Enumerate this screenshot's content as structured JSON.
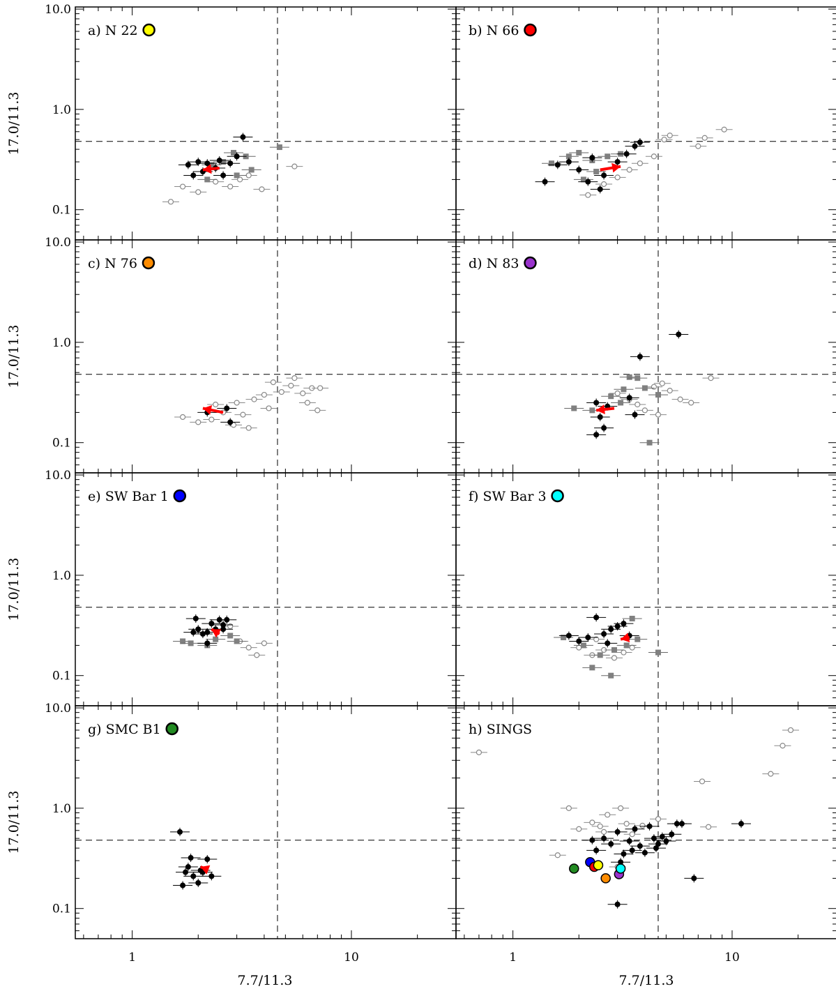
{
  "chart_data": {
    "type": "scatter",
    "xlabel": "7.7/11.3",
    "ylabel": "17.0/11.3",
    "xscale": "log",
    "yscale": "log",
    "xlim": [
      0.55,
      30
    ],
    "ylim": [
      0.05,
      10.5
    ],
    "xticks": [
      {
        "v": 1,
        "label": "1"
      },
      {
        "v": 10,
        "label": "10"
      }
    ],
    "yticks": [
      {
        "v": 0.1,
        "label": "0.1"
      },
      {
        "v": 1.0,
        "label": "1.0"
      },
      {
        "v": 10.0,
        "label": "10.0"
      }
    ],
    "reference_lines": {
      "x": 4.6,
      "y": 0.48
    },
    "legend_colors": {
      "N 22": "#ffff00",
      "N 66": "#ff0000",
      "N 76": "#ff8c00",
      "N 83": "#9932cc",
      "SW Bar 1": "#0000ff",
      "SW Bar 3": "#00ffff",
      "SMC B1": "#228b22"
    },
    "panels": [
      {
        "id": "a",
        "label": "a) N 22",
        "color": "#ffff00",
        "black": [
          [
            1.8,
            0.28
          ],
          [
            2.0,
            0.3
          ],
          [
            2.2,
            0.29
          ],
          [
            2.4,
            0.26
          ],
          [
            2.6,
            0.22
          ],
          [
            2.8,
            0.29
          ],
          [
            3.0,
            0.34
          ],
          [
            3.2,
            0.53
          ],
          [
            2.1,
            0.24
          ],
          [
            2.5,
            0.31
          ],
          [
            1.9,
            0.22
          ]
        ],
        "gray_sq": [
          [
            2.3,
            0.28
          ],
          [
            2.6,
            0.3
          ],
          [
            2.9,
            0.37
          ],
          [
            3.3,
            0.34
          ],
          [
            3.5,
            0.25
          ],
          [
            3.0,
            0.22
          ],
          [
            4.7,
            0.42
          ],
          [
            2.2,
            0.2
          ]
        ],
        "gray_open": [
          [
            1.7,
            0.17
          ],
          [
            2.0,
            0.15
          ],
          [
            2.4,
            0.19
          ],
          [
            2.8,
            0.17
          ],
          [
            3.1,
            0.2
          ],
          [
            3.4,
            0.22
          ],
          [
            3.9,
            0.16
          ],
          [
            5.5,
            0.27
          ],
          [
            1.5,
            0.12
          ]
        ],
        "arrow": [
          [
            2.5,
            0.26
          ],
          [
            2.1,
            0.25
          ]
        ]
      },
      {
        "id": "b",
        "label": "b) N 66",
        "color": "#ff0000",
        "black": [
          [
            1.4,
            0.19
          ],
          [
            1.6,
            0.28
          ],
          [
            1.8,
            0.3
          ],
          [
            2.0,
            0.25
          ],
          [
            2.2,
            0.19
          ],
          [
            2.3,
            0.33
          ],
          [
            2.5,
            0.16
          ],
          [
            3.0,
            0.3
          ],
          [
            3.3,
            0.36
          ],
          [
            3.6,
            0.43
          ],
          [
            3.8,
            0.47
          ],
          [
            2.6,
            0.22
          ]
        ],
        "gray_sq": [
          [
            1.5,
            0.29
          ],
          [
            1.8,
            0.34
          ],
          [
            2.0,
            0.37
          ],
          [
            2.3,
            0.31
          ],
          [
            2.7,
            0.34
          ],
          [
            3.1,
            0.36
          ],
          [
            2.4,
            0.24
          ],
          [
            2.1,
            0.2
          ]
        ],
        "gray_open": [
          [
            2.2,
            0.14
          ],
          [
            2.6,
            0.18
          ],
          [
            3.0,
            0.21
          ],
          [
            3.4,
            0.25
          ],
          [
            3.8,
            0.29
          ],
          [
            4.4,
            0.34
          ],
          [
            4.9,
            0.5
          ],
          [
            5.2,
            0.55
          ],
          [
            7.5,
            0.52
          ],
          [
            9.2,
            0.63
          ],
          [
            7.0,
            0.43
          ]
        ],
        "arrow": [
          [
            2.5,
            0.25
          ],
          [
            3.1,
            0.27
          ]
        ]
      },
      {
        "id": "c",
        "label": "c) N 76",
        "color": "#ff8c00",
        "black": [
          [
            2.7,
            0.22
          ],
          [
            2.8,
            0.16
          ],
          [
            2.2,
            0.2
          ]
        ],
        "gray_sq": [],
        "gray_open": [
          [
            1.7,
            0.18
          ],
          [
            2.0,
            0.16
          ],
          [
            2.3,
            0.17
          ],
          [
            2.6,
            0.2
          ],
          [
            2.9,
            0.15
          ],
          [
            3.2,
            0.19
          ],
          [
            3.6,
            0.27
          ],
          [
            4.0,
            0.3
          ],
          [
            4.4,
            0.4
          ],
          [
            4.8,
            0.32
          ],
          [
            5.3,
            0.37
          ],
          [
            6.0,
            0.31
          ],
          [
            6.6,
            0.35
          ],
          [
            7.2,
            0.35
          ],
          [
            5.5,
            0.44
          ],
          [
            6.3,
            0.25
          ],
          [
            7.0,
            0.21
          ],
          [
            4.2,
            0.22
          ],
          [
            3.4,
            0.14
          ],
          [
            2.4,
            0.24
          ],
          [
            3.0,
            0.25
          ]
        ],
        "arrow": [
          [
            2.6,
            0.2
          ],
          [
            2.1,
            0.22
          ]
        ]
      },
      {
        "id": "d",
        "label": "d) N 83",
        "color": "#9932cc",
        "black": [
          [
            2.4,
            0.25
          ],
          [
            2.5,
            0.18
          ],
          [
            2.6,
            0.14
          ],
          [
            2.4,
            0.12
          ],
          [
            3.4,
            0.28
          ],
          [
            3.6,
            0.19
          ],
          [
            3.8,
            0.72
          ],
          [
            5.7,
            1.2
          ],
          [
            2.7,
            0.23
          ]
        ],
        "gray_sq": [
          [
            1.9,
            0.22
          ],
          [
            2.3,
            0.21
          ],
          [
            2.8,
            0.29
          ],
          [
            3.2,
            0.34
          ],
          [
            3.4,
            0.45
          ],
          [
            3.7,
            0.44
          ],
          [
            4.0,
            0.35
          ],
          [
            3.1,
            0.25
          ],
          [
            4.2,
            0.1
          ],
          [
            4.6,
            0.3
          ]
        ],
        "gray_open": [
          [
            3.0,
            0.31
          ],
          [
            3.4,
            0.27
          ],
          [
            3.7,
            0.24
          ],
          [
            4.0,
            0.21
          ],
          [
            4.4,
            0.36
          ],
          [
            4.8,
            0.39
          ],
          [
            5.2,
            0.33
          ],
          [
            5.8,
            0.27
          ],
          [
            6.5,
            0.25
          ],
          [
            8.0,
            0.44
          ],
          [
            4.6,
            0.19
          ]
        ],
        "arrow": [
          [
            2.9,
            0.22
          ],
          [
            2.4,
            0.21
          ]
        ]
      },
      {
        "id": "e",
        "label": "e) SW Bar 1",
        "color": "#0000ff",
        "black": [
          [
            1.9,
            0.27
          ],
          [
            2.0,
            0.29
          ],
          [
            2.1,
            0.26
          ],
          [
            2.2,
            0.27
          ],
          [
            2.3,
            0.33
          ],
          [
            2.4,
            0.29
          ],
          [
            2.5,
            0.36
          ],
          [
            2.6,
            0.32
          ],
          [
            2.7,
            0.36
          ],
          [
            2.2,
            0.21
          ],
          [
            2.6,
            0.29
          ],
          [
            1.95,
            0.37
          ]
        ],
        "gray_sq": [
          [
            1.7,
            0.22
          ],
          [
            1.85,
            0.21
          ],
          [
            2.2,
            0.2
          ],
          [
            2.8,
            0.25
          ],
          [
            3.0,
            0.22
          ],
          [
            2.4,
            0.23
          ]
        ],
        "gray_open": [
          [
            3.1,
            0.22
          ],
          [
            3.4,
            0.19
          ],
          [
            3.7,
            0.16
          ],
          [
            4.0,
            0.21
          ],
          [
            2.8,
            0.31
          ]
        ],
        "arrow": [
          [
            2.5,
            0.26
          ],
          [
            2.3,
            0.29
          ]
        ]
      },
      {
        "id": "f",
        "label": "f) SW Bar 3",
        "color": "#00ffff",
        "black": [
          [
            1.8,
            0.25
          ],
          [
            2.0,
            0.22
          ],
          [
            2.2,
            0.24
          ],
          [
            2.4,
            0.38
          ],
          [
            2.6,
            0.26
          ],
          [
            2.8,
            0.29
          ],
          [
            3.0,
            0.31
          ],
          [
            3.2,
            0.33
          ],
          [
            2.7,
            0.21
          ],
          [
            3.4,
            0.25
          ]
        ],
        "gray_sq": [
          [
            1.7,
            0.24
          ],
          [
            2.1,
            0.2
          ],
          [
            2.5,
            0.16
          ],
          [
            2.9,
            0.18
          ],
          [
            3.3,
            0.2
          ],
          [
            3.5,
            0.37
          ],
          [
            3.7,
            0.23
          ],
          [
            2.3,
            0.12
          ],
          [
            2.8,
            0.1
          ],
          [
            4.6,
            0.17
          ]
        ],
        "gray_open": [
          [
            2.0,
            0.19
          ],
          [
            2.3,
            0.16
          ],
          [
            2.6,
            0.18
          ],
          [
            2.9,
            0.15
          ],
          [
            3.2,
            0.17
          ],
          [
            3.5,
            0.19
          ],
          [
            2.4,
            0.23
          ]
        ],
        "arrow": [
          [
            3.4,
            0.24
          ],
          [
            3.1,
            0.23
          ]
        ]
      },
      {
        "id": "g",
        "label": "g) SMC B1",
        "color": "#228b22",
        "black": [
          [
            1.65,
            0.58
          ],
          [
            1.7,
            0.17
          ],
          [
            1.8,
            0.26
          ],
          [
            1.85,
            0.32
          ],
          [
            1.9,
            0.21
          ],
          [
            2.0,
            0.18
          ],
          [
            2.1,
            0.23
          ],
          [
            2.2,
            0.31
          ],
          [
            2.3,
            0.21
          ],
          [
            1.75,
            0.23
          ],
          [
            2.05,
            0.24
          ]
        ],
        "gray_sq": [],
        "gray_open": [],
        "arrow": [
          [
            2.15,
            0.25
          ],
          [
            2.05,
            0.26
          ]
        ]
      },
      {
        "id": "h",
        "label": "h) SINGS",
        "color": "",
        "black": [
          [
            2.4,
            0.38
          ],
          [
            2.6,
            0.5
          ],
          [
            2.8,
            0.44
          ],
          [
            3.0,
            0.58
          ],
          [
            3.2,
            0.35
          ],
          [
            3.4,
            0.47
          ],
          [
            3.6,
            0.62
          ],
          [
            3.8,
            0.42
          ],
          [
            4.0,
            0.36
          ],
          [
            4.2,
            0.66
          ],
          [
            4.4,
            0.5
          ],
          [
            4.6,
            0.44
          ],
          [
            4.8,
            0.52
          ],
          [
            5.0,
            0.47
          ],
          [
            5.3,
            0.55
          ],
          [
            5.6,
            0.7
          ],
          [
            5.9,
            0.7
          ],
          [
            3.5,
            0.38
          ],
          [
            3.1,
            0.29
          ],
          [
            6.7,
            0.2
          ],
          [
            3.0,
            0.11
          ],
          [
            11.0,
            0.7
          ],
          [
            2.3,
            0.48
          ],
          [
            4.5,
            0.4
          ]
        ],
        "gray_sq": [],
        "gray_open": [
          [
            0.7,
            3.6
          ],
          [
            1.6,
            0.34
          ],
          [
            1.8,
            1.0
          ],
          [
            2.3,
            0.72
          ],
          [
            2.5,
            0.66
          ],
          [
            2.7,
            0.86
          ],
          [
            3.1,
            1.0
          ],
          [
            3.3,
            0.7
          ],
          [
            3.9,
            0.67
          ],
          [
            4.6,
            0.78
          ],
          [
            2.0,
            0.62
          ],
          [
            2.6,
            0.58
          ],
          [
            7.3,
            1.85
          ],
          [
            7.8,
            0.65
          ],
          [
            15.0,
            2.2
          ],
          [
            17.0,
            4.2
          ],
          [
            18.5,
            6.0
          ],
          [
            3.0,
            0.26
          ],
          [
            3.5,
            0.55
          ]
        ],
        "colored": [
          {
            "name": "SMC B1",
            "color": "#228b22",
            "x": 1.9,
            "y": 0.25
          },
          {
            "name": "SW Bar 1",
            "color": "#0000ff",
            "x": 2.25,
            "y": 0.29
          },
          {
            "name": "N 66",
            "color": "#ff0000",
            "x": 2.35,
            "y": 0.26
          },
          {
            "name": "N 22",
            "color": "#ffff00",
            "x": 2.45,
            "y": 0.27
          },
          {
            "name": "N 76",
            "color": "#ff8c00",
            "x": 2.65,
            "y": 0.2
          },
          {
            "name": "N 83",
            "color": "#9932cc",
            "x": 3.05,
            "y": 0.22
          },
          {
            "name": "SW Bar 3",
            "color": "#00ffff",
            "x": 3.1,
            "y": 0.25
          }
        ],
        "arrow": null
      }
    ]
  }
}
